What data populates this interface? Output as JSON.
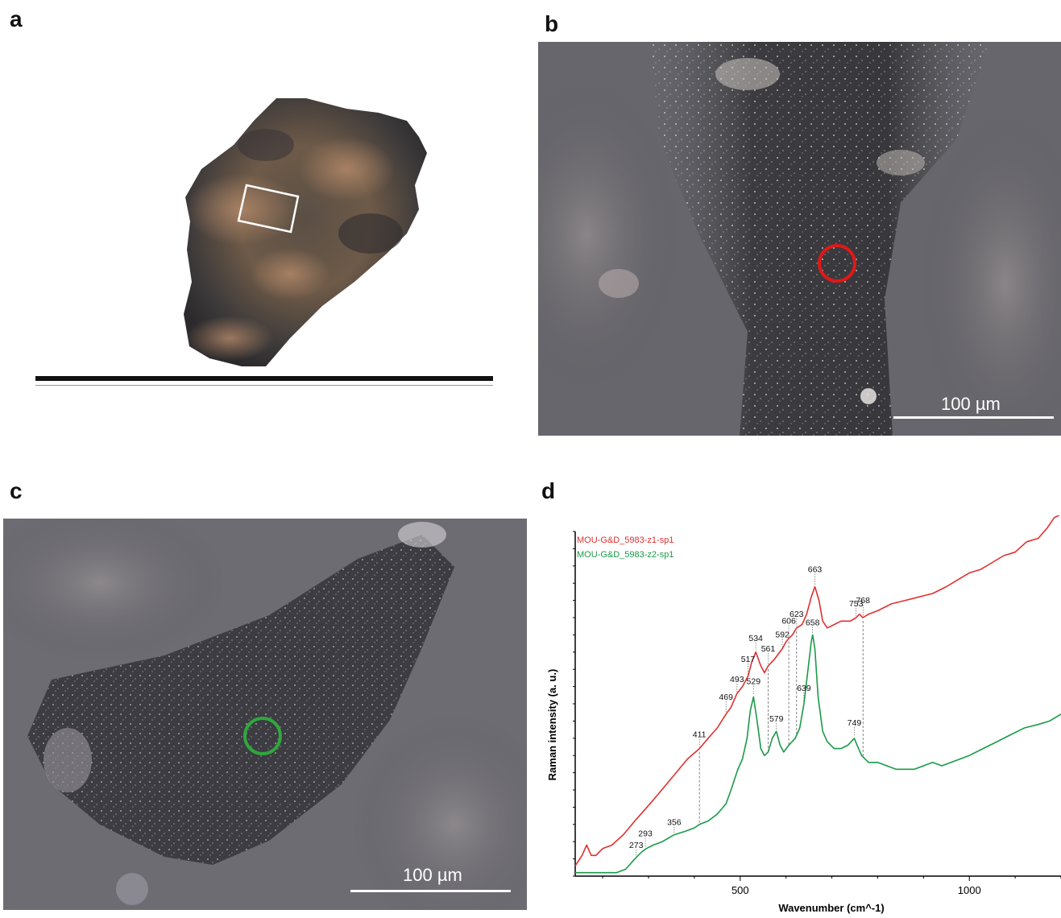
{
  "panels": {
    "a": "a",
    "b": "b",
    "c": "c",
    "d": "d"
  },
  "scale_bars": {
    "b": "100 µm",
    "c": "100 µm"
  },
  "colors": {
    "series_red": "#e03030",
    "series_green": "#1a9a48",
    "marker_red": "#e01818",
    "marker_green": "#2fa83c"
  },
  "chart_data": {
    "type": "line",
    "xlabel": "Wavenumber (cm^-1)",
    "ylabel": "Raman intensity (a. u.)",
    "xlim": [
      140,
      1200
    ],
    "ylim": [
      0,
      100
    ],
    "x_ticks": [
      500,
      1000
    ],
    "x_tick_labels": [
      "500",
      "1000"
    ],
    "grid": false,
    "legend_position": "top-left",
    "series": [
      {
        "name": "MOU-G&D_5983-z1-sp1",
        "color": "#e03030",
        "points": [
          [
            140,
            3
          ],
          [
            155,
            6
          ],
          [
            165,
            9
          ],
          [
            175,
            6
          ],
          [
            185,
            6
          ],
          [
            200,
            8
          ],
          [
            220,
            9
          ],
          [
            245,
            12
          ],
          [
            270,
            16
          ],
          [
            290,
            19
          ],
          [
            310,
            22
          ],
          [
            335,
            26
          ],
          [
            360,
            30
          ],
          [
            385,
            34
          ],
          [
            411,
            37
          ],
          [
            430,
            40
          ],
          [
            450,
            43
          ],
          [
            469,
            47
          ],
          [
            480,
            49
          ],
          [
            493,
            53
          ],
          [
            505,
            55
          ],
          [
            517,
            58
          ],
          [
            525,
            62
          ],
          [
            534,
            65
          ],
          [
            545,
            61
          ],
          [
            553,
            59
          ],
          [
            561,
            61
          ],
          [
            575,
            63
          ],
          [
            592,
            66
          ],
          [
            600,
            68
          ],
          [
            606,
            69
          ],
          [
            614,
            70
          ],
          [
            623,
            72
          ],
          [
            635,
            73
          ],
          [
            645,
            76
          ],
          [
            655,
            81
          ],
          [
            663,
            84
          ],
          [
            672,
            80
          ],
          [
            680,
            74
          ],
          [
            690,
            72
          ],
          [
            705,
            73
          ],
          [
            720,
            74
          ],
          [
            740,
            74
          ],
          [
            753,
            75
          ],
          [
            760,
            76
          ],
          [
            768,
            75
          ],
          [
            780,
            76
          ],
          [
            800,
            77
          ],
          [
            830,
            79
          ],
          [
            860,
            80
          ],
          [
            890,
            81
          ],
          [
            920,
            82
          ],
          [
            950,
            84
          ],
          [
            975,
            86
          ],
          [
            1000,
            88
          ],
          [
            1025,
            89
          ],
          [
            1050,
            91
          ],
          [
            1075,
            93
          ],
          [
            1100,
            94
          ],
          [
            1125,
            97
          ],
          [
            1150,
            98
          ],
          [
            1170,
            101
          ],
          [
            1185,
            104
          ],
          [
            1200,
            105
          ]
        ]
      },
      {
        "name": "MOU-G&D_5983-z2-sp1",
        "color": "#1a9a48",
        "points": [
          [
            140,
            1
          ],
          [
            160,
            1
          ],
          [
            180,
            1
          ],
          [
            200,
            1
          ],
          [
            230,
            1
          ],
          [
            250,
            2
          ],
          [
            270,
            5
          ],
          [
            285,
            7
          ],
          [
            295,
            8
          ],
          [
            310,
            9
          ],
          [
            330,
            10
          ],
          [
            356,
            12
          ],
          [
            380,
            13
          ],
          [
            400,
            14
          ],
          [
            411,
            15
          ],
          [
            430,
            16
          ],
          [
            450,
            18
          ],
          [
            469,
            21
          ],
          [
            480,
            25
          ],
          [
            495,
            31
          ],
          [
            505,
            34
          ],
          [
            515,
            40
          ],
          [
            522,
            48
          ],
          [
            529,
            52
          ],
          [
            537,
            45
          ],
          [
            545,
            37
          ],
          [
            553,
            35
          ],
          [
            561,
            36
          ],
          [
            570,
            40
          ],
          [
            579,
            42
          ],
          [
            587,
            38
          ],
          [
            595,
            36
          ],
          [
            606,
            38
          ],
          [
            620,
            40
          ],
          [
            630,
            43
          ],
          [
            639,
            50
          ],
          [
            648,
            60
          ],
          [
            655,
            68
          ],
          [
            658,
            70
          ],
          [
            663,
            66
          ],
          [
            670,
            52
          ],
          [
            680,
            42
          ],
          [
            690,
            39
          ],
          [
            705,
            37
          ],
          [
            720,
            37
          ],
          [
            735,
            38
          ],
          [
            749,
            40
          ],
          [
            755,
            38
          ],
          [
            765,
            35
          ],
          [
            780,
            33
          ],
          [
            800,
            33
          ],
          [
            820,
            32
          ],
          [
            840,
            31
          ],
          [
            860,
            31
          ],
          [
            880,
            31
          ],
          [
            900,
            32
          ],
          [
            920,
            33
          ],
          [
            940,
            32
          ],
          [
            960,
            33
          ],
          [
            980,
            34
          ],
          [
            1000,
            35
          ],
          [
            1030,
            37
          ],
          [
            1060,
            39
          ],
          [
            1090,
            41
          ],
          [
            1120,
            43
          ],
          [
            1150,
            44
          ],
          [
            1175,
            45
          ],
          [
            1200,
            47
          ]
        ]
      }
    ],
    "annotations_red": [
      {
        "x": 411,
        "label": "411"
      },
      {
        "x": 469,
        "label": "469"
      },
      {
        "x": 493,
        "label": "493"
      },
      {
        "x": 517,
        "label": "517"
      },
      {
        "x": 534,
        "label": "534"
      },
      {
        "x": 561,
        "label": "561"
      },
      {
        "x": 592,
        "label": "592"
      },
      {
        "x": 606,
        "label": "606"
      },
      {
        "x": 623,
        "label": "623"
      },
      {
        "x": 663,
        "label": "663"
      },
      {
        "x": 753,
        "label": "753"
      },
      {
        "x": 768,
        "label": "768"
      }
    ],
    "annotations_green": [
      {
        "x": 273,
        "label": "273"
      },
      {
        "x": 293,
        "label": "293"
      },
      {
        "x": 356,
        "label": "356"
      },
      {
        "x": 529,
        "label": "529"
      },
      {
        "x": 579,
        "label": "579"
      },
      {
        "x": 639,
        "label": "639"
      },
      {
        "x": 658,
        "label": "658"
      },
      {
        "x": 749,
        "label": "749"
      }
    ]
  }
}
